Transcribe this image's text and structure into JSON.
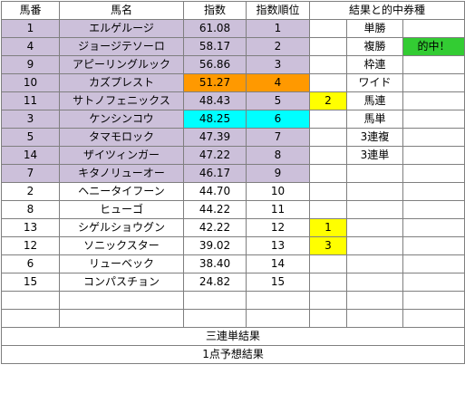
{
  "header": {
    "col_bango": "馬番",
    "col_bamei": "馬名",
    "col_shisu": "指数",
    "col_juni": "指数順位",
    "col_kekka": "結果と的中券種"
  },
  "rows": [
    {
      "bango": "1",
      "bamei": "エルゲルージ",
      "shisu": "61.08",
      "juni": "1",
      "mark": "",
      "baken": "単勝",
      "hit": ""
    },
    {
      "bango": "4",
      "bamei": "ジョージテソーロ",
      "shisu": "58.17",
      "juni": "2",
      "mark": "",
      "baken": "複勝",
      "hit": "的中！"
    },
    {
      "bango": "9",
      "bamei": "アピーリングルック",
      "shisu": "56.86",
      "juni": "3",
      "mark": "",
      "baken": "枠連",
      "hit": ""
    },
    {
      "bango": "10",
      "bamei": "カズプレスト",
      "shisu": "51.27",
      "juni": "4",
      "mark": "",
      "baken": "ワイド",
      "hit": ""
    },
    {
      "bango": "11",
      "bamei": "サトノフェニックス",
      "shisu": "48.43",
      "juni": "5",
      "mark": "2",
      "baken": "馬連",
      "hit": ""
    },
    {
      "bango": "3",
      "bamei": "ケンシンコウ",
      "shisu": "48.25",
      "juni": "6",
      "mark": "",
      "baken": "馬単",
      "hit": ""
    },
    {
      "bango": "5",
      "bamei": "タマモロック",
      "shisu": "47.39",
      "juni": "7",
      "mark": "",
      "baken": "3連複",
      "hit": ""
    },
    {
      "bango": "14",
      "bamei": "ザイツィンガー",
      "shisu": "47.22",
      "juni": "8",
      "mark": "",
      "baken": "3連単",
      "hit": ""
    },
    {
      "bango": "7",
      "bamei": "キタノリューオー",
      "shisu": "46.17",
      "juni": "9",
      "mark": "",
      "baken": "",
      "hit": ""
    },
    {
      "bango": "2",
      "bamei": "ヘニータイフーン",
      "shisu": "44.70",
      "juni": "10",
      "mark": "",
      "baken": "",
      "hit": ""
    },
    {
      "bango": "8",
      "bamei": "ヒューゴ",
      "shisu": "44.22",
      "juni": "11",
      "mark": "",
      "baken": "",
      "hit": ""
    },
    {
      "bango": "13",
      "bamei": "シゲルショウグン",
      "shisu": "42.22",
      "juni": "12",
      "mark": "1",
      "baken": "",
      "hit": ""
    },
    {
      "bango": "12",
      "bamei": "ソニックスター",
      "shisu": "39.02",
      "juni": "13",
      "mark": "3",
      "baken": "",
      "hit": ""
    },
    {
      "bango": "6",
      "bamei": "リューベック",
      "shisu": "38.40",
      "juni": "14",
      "mark": "",
      "baken": "",
      "hit": ""
    },
    {
      "bango": "15",
      "bamei": "コンパスチョン",
      "shisu": "24.82",
      "juni": "15",
      "mark": "",
      "baken": "",
      "hit": ""
    }
  ],
  "footer": {
    "sanrentan": "三連単結果",
    "yoso": "1点予想結果"
  },
  "colors": {
    "lavender": "#ccc0da",
    "orange": "#ff9900",
    "cyan": "#00ffff",
    "yellow": "#ffff00",
    "green": "#33cc33"
  }
}
